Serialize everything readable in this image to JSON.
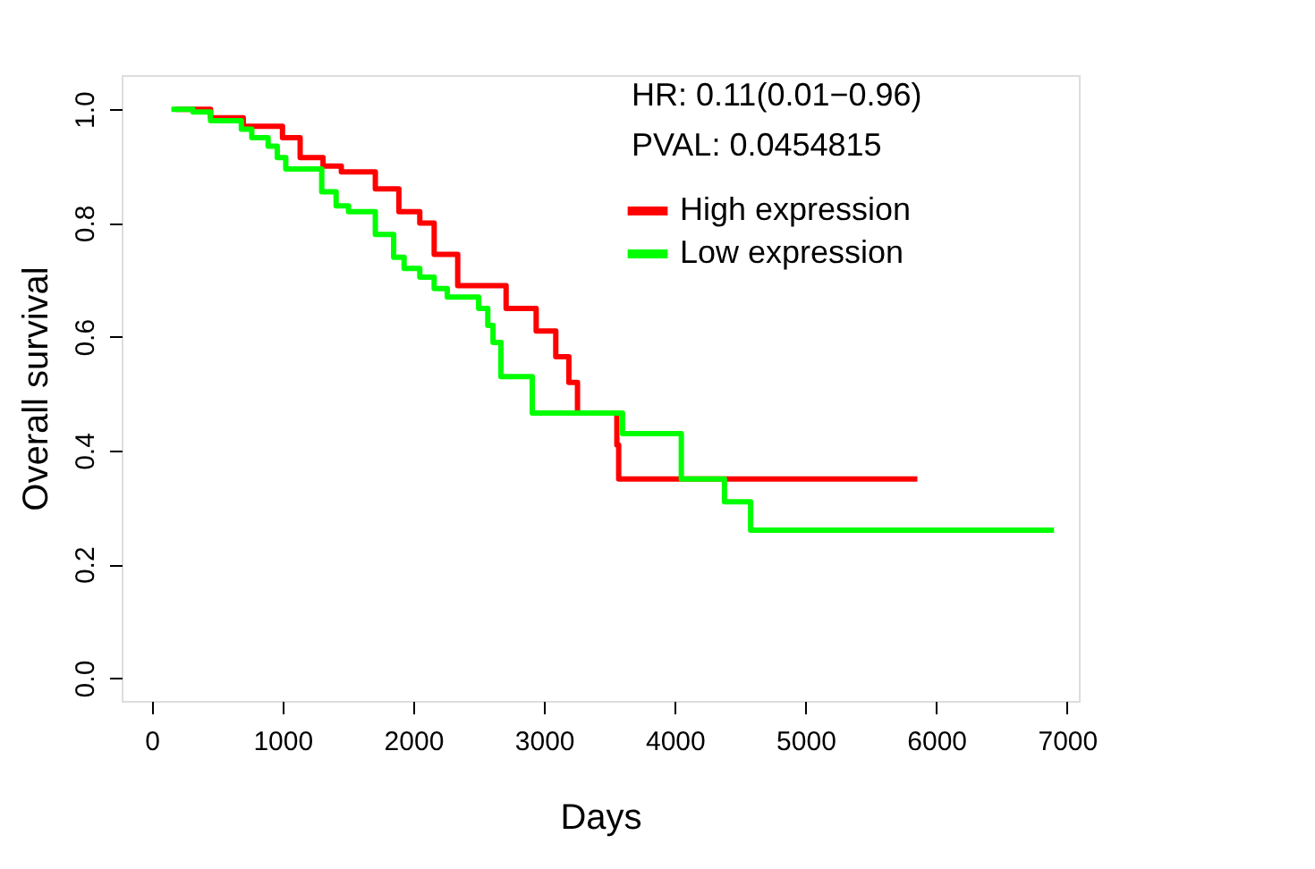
{
  "chart_data": {
    "type": "step",
    "xlabel": "Days",
    "ylabel": "Overall survival",
    "xlim": [
      -230,
      7090
    ],
    "ylim": [
      -0.04,
      1.06
    ],
    "xticks": [
      0,
      1000,
      2000,
      3000,
      4000,
      5000,
      6000,
      7000
    ],
    "yticks": [
      {
        "value": 0,
        "label": "0.0"
      },
      0.2,
      0.4,
      0.6,
      0.8,
      {
        "value": 1,
        "label": "1.0"
      }
    ],
    "grid": false,
    "legend": "top right",
    "line_style": "solid",
    "marker": "none",
    "annotations": [
      "HR: 0.11(0.01−0.96)",
      "PVAL: 0.0454815"
    ],
    "series": [
      {
        "name": "High expression",
        "color": "#ff0000",
        "x": [
          180,
          450,
          700,
          1000,
          1135,
          1310,
          1450,
          1710,
          1890,
          2050,
          2160,
          2340,
          2710,
          2940,
          3090,
          3190,
          3256,
          3557,
          3571,
          5855
        ],
        "values": [
          1.0,
          0.985,
          0.97,
          0.95,
          0.915,
          0.9,
          0.89,
          0.86,
          0.82,
          0.8,
          0.745,
          0.69,
          0.65,
          0.61,
          0.565,
          0.52,
          0.466,
          0.41,
          0.35,
          0.35
        ]
      },
      {
        "name": "Low expression",
        "color": "#00ff00",
        "x": [
          150,
          315,
          450,
          685,
          765,
          890,
          960,
          1025,
          1300,
          1410,
          1505,
          1710,
          1850,
          1930,
          2050,
          2160,
          2260,
          2500,
          2570,
          2610,
          2670,
          2910,
          3600,
          4050,
          4380,
          4580,
          6900
        ],
        "values": [
          1.0,
          0.995,
          0.98,
          0.965,
          0.95,
          0.935,
          0.915,
          0.895,
          0.855,
          0.83,
          0.82,
          0.78,
          0.74,
          0.72,
          0.705,
          0.685,
          0.67,
          0.65,
          0.62,
          0.59,
          0.53,
          0.466,
          0.43,
          0.35,
          0.31,
          0.26,
          0.26
        ]
      }
    ]
  }
}
